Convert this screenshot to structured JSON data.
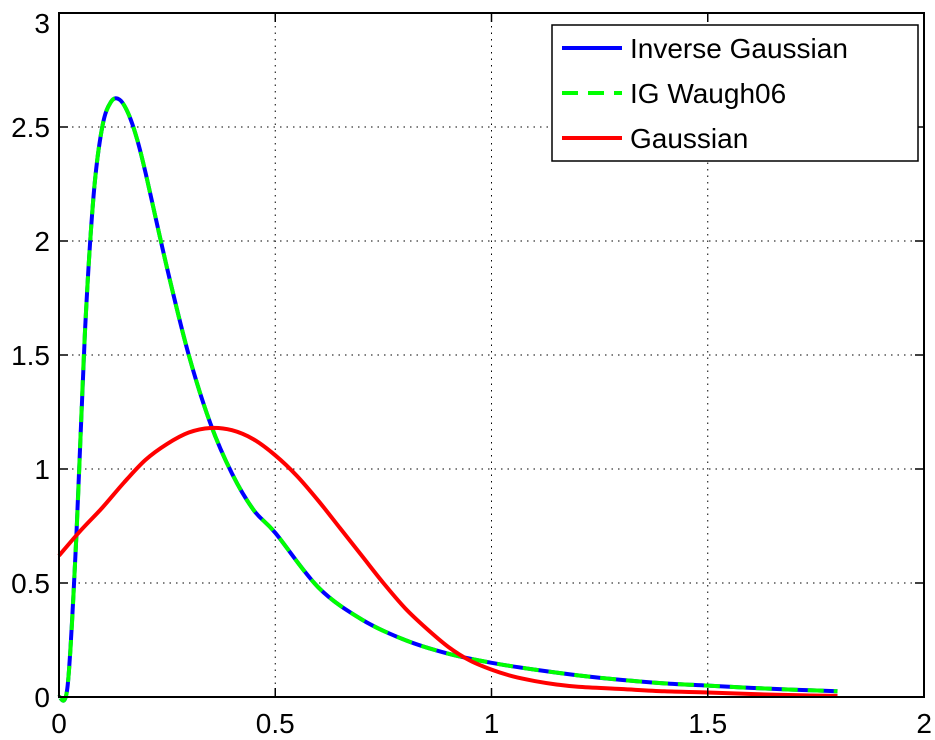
{
  "chart_data": {
    "type": "line",
    "title": "",
    "xlabel": "",
    "ylabel": "",
    "xlim": [
      0,
      2
    ],
    "ylim": [
      0,
      3
    ],
    "x_ticks": [
      0,
      0.5,
      1,
      1.5,
      2
    ],
    "y_ticks": [
      0,
      0.5,
      1,
      1.5,
      2,
      2.5,
      3
    ],
    "x_tick_labels": [
      "0",
      "0.5",
      "1",
      "1.5",
      "2"
    ],
    "y_tick_labels": [
      "0",
      "0.5",
      "1",
      "1.5",
      "2",
      "2.5",
      "3"
    ],
    "grid": true,
    "grid_style": "dotted",
    "legend_position": "top-right",
    "series": [
      {
        "name": "Inverse Gaussian",
        "color": "#0000ff",
        "line_style": "solid",
        "x": [
          0.0,
          0.02,
          0.04,
          0.06,
          0.08,
          0.1,
          0.12,
          0.14,
          0.16,
          0.18,
          0.2,
          0.25,
          0.3,
          0.35,
          0.4,
          0.45,
          0.5,
          0.6,
          0.7,
          0.8,
          0.9,
          1.0,
          1.1,
          1.2,
          1.3,
          1.4,
          1.5,
          1.6,
          1.7,
          1.8
        ],
        "y": [
          0.0,
          0.05,
          0.7,
          1.6,
          2.2,
          2.5,
          2.61,
          2.62,
          2.56,
          2.45,
          2.3,
          1.88,
          1.5,
          1.2,
          0.98,
          0.82,
          0.72,
          0.48,
          0.34,
          0.25,
          0.19,
          0.15,
          0.12,
          0.095,
          0.075,
          0.06,
          0.05,
          0.04,
          0.032,
          0.025
        ]
      },
      {
        "name": "IG Waugh06",
        "color": "#00ff00",
        "line_style": "dashed",
        "x": [
          0.0,
          0.02,
          0.04,
          0.06,
          0.08,
          0.1,
          0.12,
          0.14,
          0.16,
          0.18,
          0.2,
          0.25,
          0.3,
          0.35,
          0.4,
          0.45,
          0.5,
          0.6,
          0.7,
          0.8,
          0.9,
          1.0,
          1.1,
          1.2,
          1.3,
          1.4,
          1.5,
          1.6,
          1.7,
          1.8
        ],
        "y": [
          0.0,
          0.05,
          0.7,
          1.6,
          2.2,
          2.5,
          2.61,
          2.62,
          2.56,
          2.45,
          2.3,
          1.88,
          1.5,
          1.2,
          0.98,
          0.82,
          0.72,
          0.48,
          0.34,
          0.25,
          0.19,
          0.15,
          0.12,
          0.095,
          0.075,
          0.06,
          0.05,
          0.04,
          0.032,
          0.025
        ]
      },
      {
        "name": "Gaussian",
        "color": "#ff0000",
        "line_style": "solid",
        "x": [
          0.0,
          0.05,
          0.1,
          0.15,
          0.2,
          0.25,
          0.3,
          0.35,
          0.4,
          0.45,
          0.5,
          0.55,
          0.6,
          0.65,
          0.7,
          0.75,
          0.8,
          0.85,
          0.9,
          0.95,
          1.0,
          1.05,
          1.1,
          1.15,
          1.2,
          1.3,
          1.4,
          1.5,
          1.6,
          1.7,
          1.8
        ],
        "y": [
          0.62,
          0.73,
          0.83,
          0.94,
          1.04,
          1.11,
          1.16,
          1.18,
          1.17,
          1.13,
          1.06,
          0.97,
          0.86,
          0.74,
          0.62,
          0.5,
          0.39,
          0.3,
          0.22,
          0.16,
          0.12,
          0.09,
          0.07,
          0.055,
          0.045,
          0.035,
          0.025,
          0.02,
          0.013,
          0.008,
          0.005
        ]
      }
    ]
  }
}
